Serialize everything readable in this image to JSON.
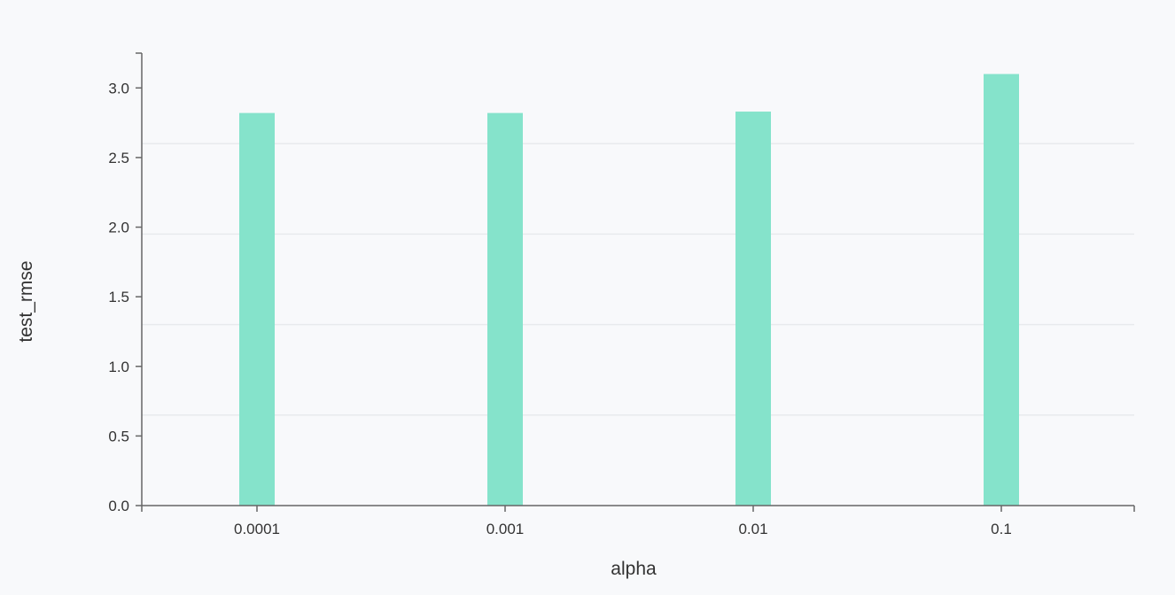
{
  "chart_data": {
    "type": "bar",
    "title": "",
    "xlabel": "alpha",
    "ylabel": "test_rmse",
    "categories": [
      "0.0001",
      "0.001",
      "0.01",
      "0.1"
    ],
    "values": [
      2.82,
      2.82,
      2.83,
      3.1
    ],
    "ylim": [
      0,
      3.25
    ],
    "yticks": [
      "0.0",
      "0.5",
      "1.0",
      "1.5",
      "2.0",
      "2.5",
      "3.0"
    ],
    "grid": "horizontal",
    "colors": {
      "bar": "#85e3cb",
      "axis": "#666666",
      "grid": "#e8eaed",
      "text": "#333333",
      "background": "#f8f9fb"
    }
  }
}
